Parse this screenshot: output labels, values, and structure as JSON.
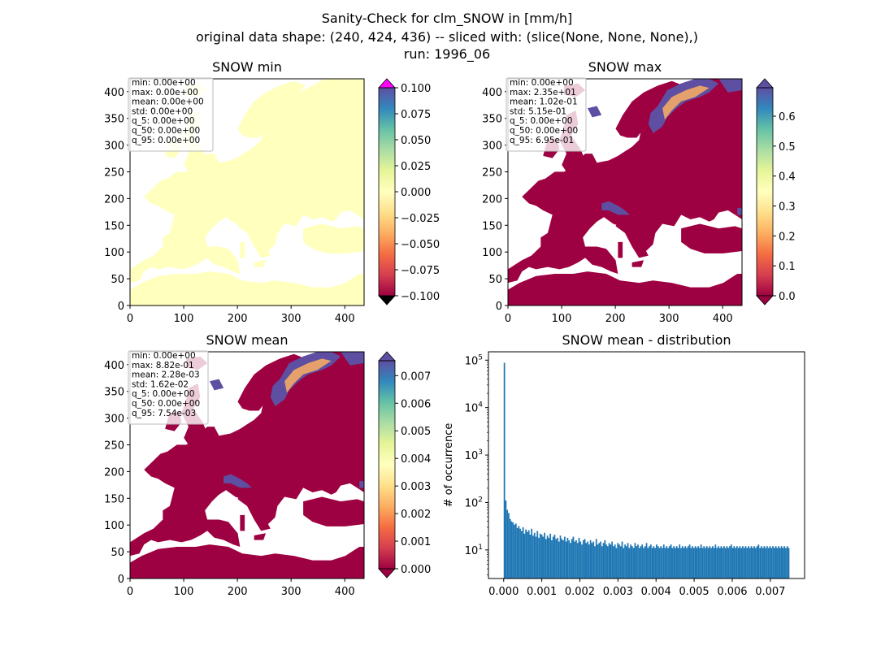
{
  "figure": {
    "title_lines": [
      "Sanity-Check for clm_SNOW in [mm/h]",
      "original data shape: (240, 424, 436) -- sliced with: (slice(None, None, None),)",
      "run: 1996_06"
    ]
  },
  "chart_data": [
    {
      "id": "min",
      "type": "heatmap",
      "title": "SNOW min",
      "xlim": [
        0,
        436
      ],
      "ylim": [
        0,
        424
      ],
      "xticks": [
        "0",
        "100",
        "200",
        "300",
        "400"
      ],
      "yticks": [
        "0",
        "50",
        "100",
        "150",
        "200",
        "250",
        "300",
        "350",
        "400"
      ],
      "stats": [
        "min: 0.00e+00",
        "max: 0.00e+00",
        "mean: 0.00e+00",
        "std: 0.00e+00",
        "q_5: 0.00e+00",
        "q_50: 0.00e+00",
        "q_95: 0.00e+00"
      ],
      "colorbar": {
        "ticks": [
          "0.100",
          "0.075",
          "0.050",
          "0.025",
          "0.000",
          "−0.025",
          "−0.050",
          "−0.075",
          "−0.100"
        ],
        "range": [
          -0.1,
          0.1
        ],
        "cmap": "Spectral",
        "over_color": "#ff00ff",
        "under_color": "#000000"
      },
      "land_value": 0.0,
      "land_color": "#ffffbe"
    },
    {
      "id": "max",
      "type": "heatmap",
      "title": "SNOW max",
      "xlim": [
        0,
        436
      ],
      "ylim": [
        0,
        424
      ],
      "xticks": [
        "0",
        "100",
        "200",
        "300",
        "400"
      ],
      "yticks": [
        "0",
        "50",
        "100",
        "150",
        "200",
        "250",
        "300",
        "350",
        "400"
      ],
      "stats": [
        "min: 0.00e+00",
        "max: 2.35e+01",
        "mean: 1.02e-01",
        "std: 5.15e-01",
        "q_5: 0.00e+00",
        "q_50: 0.00e+00",
        "q_95: 6.95e-01"
      ],
      "colorbar": {
        "ticks": [
          "0.6",
          "0.5",
          "0.4",
          "0.3",
          "0.2",
          "0.1",
          "0.0"
        ],
        "range": [
          0,
          0.695
        ],
        "cmap": "Spectral",
        "over_color": "#5e4fa2",
        "under_color": "#9e0142"
      },
      "land_value": 0.0,
      "land_color": "#9e0142",
      "snow_color": "#5e4fa2"
    },
    {
      "id": "mean",
      "type": "heatmap",
      "title": "SNOW mean",
      "xlim": [
        0,
        436
      ],
      "ylim": [
        0,
        424
      ],
      "xticks": [
        "0",
        "100",
        "200",
        "300",
        "400"
      ],
      "yticks": [
        "0",
        "50",
        "100",
        "150",
        "200",
        "250",
        "300",
        "350",
        "400"
      ],
      "stats": [
        "min: 0.00e+00",
        "max: 8.82e-01",
        "mean: 2.28e-03",
        "std: 1.62e-02",
        "q_5: 0.00e+00",
        "q_50: 0.00e+00",
        "q_95: 7.54e-03"
      ],
      "colorbar": {
        "ticks": [
          "0.007",
          "0.006",
          "0.005",
          "0.004",
          "0.003",
          "0.002",
          "0.001",
          "0.000"
        ],
        "range": [
          0,
          0.00754
        ],
        "cmap": "Spectral",
        "over_color": "#5e4fa2",
        "under_color": "#9e0142"
      },
      "land_value": 0.0,
      "land_color": "#9e0142",
      "snow_color": "#5e4fa2"
    },
    {
      "id": "hist",
      "type": "bar",
      "title": "SNOW mean - distribution",
      "xlabel": "",
      "ylabel": "# of occurrence",
      "yscale": "log",
      "ylim": [
        2.5,
        150000
      ],
      "xlim": [
        -0.0004,
        0.0079
      ],
      "xticks": [
        "0.000",
        "0.001",
        "0.002",
        "0.003",
        "0.004",
        "0.005",
        "0.006",
        "0.007"
      ],
      "yticks": [
        "10^1",
        "10^2",
        "10^3",
        "10^4",
        "10^5"
      ],
      "bar_color": "#1f77b4",
      "bin_start": 0.0,
      "bin_width": 3.77e-05,
      "counts": [
        88000,
        110,
        70,
        60,
        45,
        40,
        38,
        34,
        36,
        29,
        32,
        28,
        25,
        30,
        22,
        27,
        24,
        26,
        21,
        28,
        20,
        23,
        19,
        25,
        18,
        22,
        21,
        19,
        23,
        17,
        20,
        18,
        22,
        16,
        19,
        21,
        17,
        18,
        15,
        20,
        17,
        16,
        19,
        15,
        18,
        16,
        14,
        17,
        19,
        15,
        16,
        14,
        18,
        15,
        13,
        16,
        17,
        14,
        15,
        13,
        16,
        14,
        15,
        12,
        17,
        13,
        14,
        15,
        12,
        14,
        16,
        13,
        12,
        14,
        13,
        15,
        12,
        13,
        11,
        14,
        13,
        12,
        15,
        11,
        13,
        12,
        14,
        11,
        13,
        12,
        11,
        14,
        12,
        13,
        11,
        12,
        13,
        11,
        12,
        14,
        11,
        12,
        13,
        11,
        12,
        11,
        13,
        12,
        11,
        12,
        11,
        13,
        11,
        12,
        11,
        12,
        13,
        11,
        12,
        11,
        12,
        11,
        13,
        11,
        12,
        11,
        12,
        11,
        12,
        13,
        11,
        12,
        11,
        12,
        11,
        12,
        11,
        13,
        11,
        12,
        11,
        12,
        11,
        12,
        11,
        12,
        11,
        13,
        11,
        12,
        11,
        12,
        11,
        12,
        11,
        12,
        11,
        12,
        13,
        11,
        12,
        11,
        12,
        11,
        12,
        11,
        12,
        11,
        12,
        11,
        12,
        11,
        12,
        11,
        12,
        11,
        12,
        13,
        11,
        12,
        11,
        12,
        11,
        12,
        11,
        12,
        11,
        12,
        11,
        12,
        11,
        12,
        11,
        12,
        11,
        12,
        11,
        12,
        11
      ]
    }
  ]
}
